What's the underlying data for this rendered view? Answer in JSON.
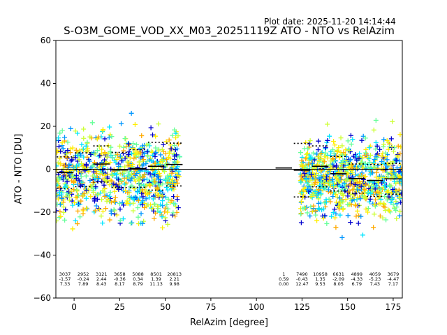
{
  "plot_date": "Plot date: 2025-11-20 14:14:44",
  "chart_data": {
    "type": "scatter",
    "title": "S-O3M_GOME_VOD_XX_M03_20251119Z ATO - NTO vs RelAzim",
    "xlabel": "RelAzim [degree]",
    "ylabel": "ATO - NTO [DU]",
    "xlim": [
      -10,
      180
    ],
    "ylim": [
      -60,
      60
    ],
    "xticks": [
      0,
      25,
      50,
      75,
      100,
      125,
      150,
      175
    ],
    "yticks": [
      -60,
      -40,
      -20,
      0,
      20,
      40,
      60
    ],
    "grid": false,
    "zero_line": 0,
    "scatter_colors": [
      "#0000cd",
      "#0096ff",
      "#00e5ff",
      "#66ff99",
      "#ccff33",
      "#ffee00",
      "#ffaa00"
    ],
    "scatter_clusters": [
      {
        "x_range": [
          -10,
          58
        ],
        "y_center": -3,
        "y_spread": 18
      },
      {
        "x_range": [
          124,
          180
        ],
        "y_center": -4,
        "y_spread": 16
      }
    ],
    "bins": [
      {
        "x_center": -5,
        "count": "3037",
        "mean": -1.57,
        "sd": 7.33,
        "mean_label": "-1.57",
        "sd_label": "7.33"
      },
      {
        "x_center": 5,
        "count": "2952",
        "mean": -0.24,
        "sd": 7.89,
        "mean_label": "-0.24",
        "sd_label": "7.89"
      },
      {
        "x_center": 15,
        "count": "3121",
        "mean": 2.44,
        "sd": 8.43,
        "mean_label": "2.44",
        "sd_label": "8.43"
      },
      {
        "x_center": 25,
        "count": "3658",
        "mean": -0.36,
        "sd": 8.17,
        "mean_label": "-0.36",
        "sd_label": "8.17"
      },
      {
        "x_center": 35,
        "count": "5088",
        "mean": 0.34,
        "sd": 8.79,
        "mean_label": "0.34",
        "sd_label": "8.79"
      },
      {
        "x_center": 45,
        "count": "8501",
        "mean": 1.39,
        "sd": 11.13,
        "mean_label": "1.39",
        "sd_label": "11.13"
      },
      {
        "x_center": 55,
        "count": "20813",
        "mean": 2.21,
        "sd": 9.98,
        "mean_label": "2.21",
        "sd_label": "9.98"
      },
      {
        "x_center": 115,
        "count": "1",
        "mean": 0.59,
        "sd": 0.0,
        "mean_label": "0.59",
        "sd_label": "0.00"
      },
      {
        "x_center": 125,
        "count": "7490",
        "mean": -0.43,
        "sd": 12.47,
        "mean_label": "-0.43",
        "sd_label": "12.47"
      },
      {
        "x_center": 135,
        "count": "10958",
        "mean": 1.35,
        "sd": 9.53,
        "mean_label": "1.35",
        "sd_label": "9.53"
      },
      {
        "x_center": 145,
        "count": "6631",
        "mean": -2.09,
        "sd": 8.05,
        "mean_label": "-2.09",
        "sd_label": "8.05"
      },
      {
        "x_center": 155,
        "count": "4899",
        "mean": -4.33,
        "sd": 6.79,
        "mean_label": "-4.33",
        "sd_label": "6.79"
      },
      {
        "x_center": 165,
        "count": "4059",
        "mean": -5.23,
        "sd": 7.43,
        "mean_label": "-5.23",
        "sd_label": "7.43"
      },
      {
        "x_center": 175,
        "count": "3679",
        "mean": -4.47,
        "sd": 7.17,
        "mean_label": "-4.47",
        "sd_label": "7.17"
      }
    ]
  }
}
